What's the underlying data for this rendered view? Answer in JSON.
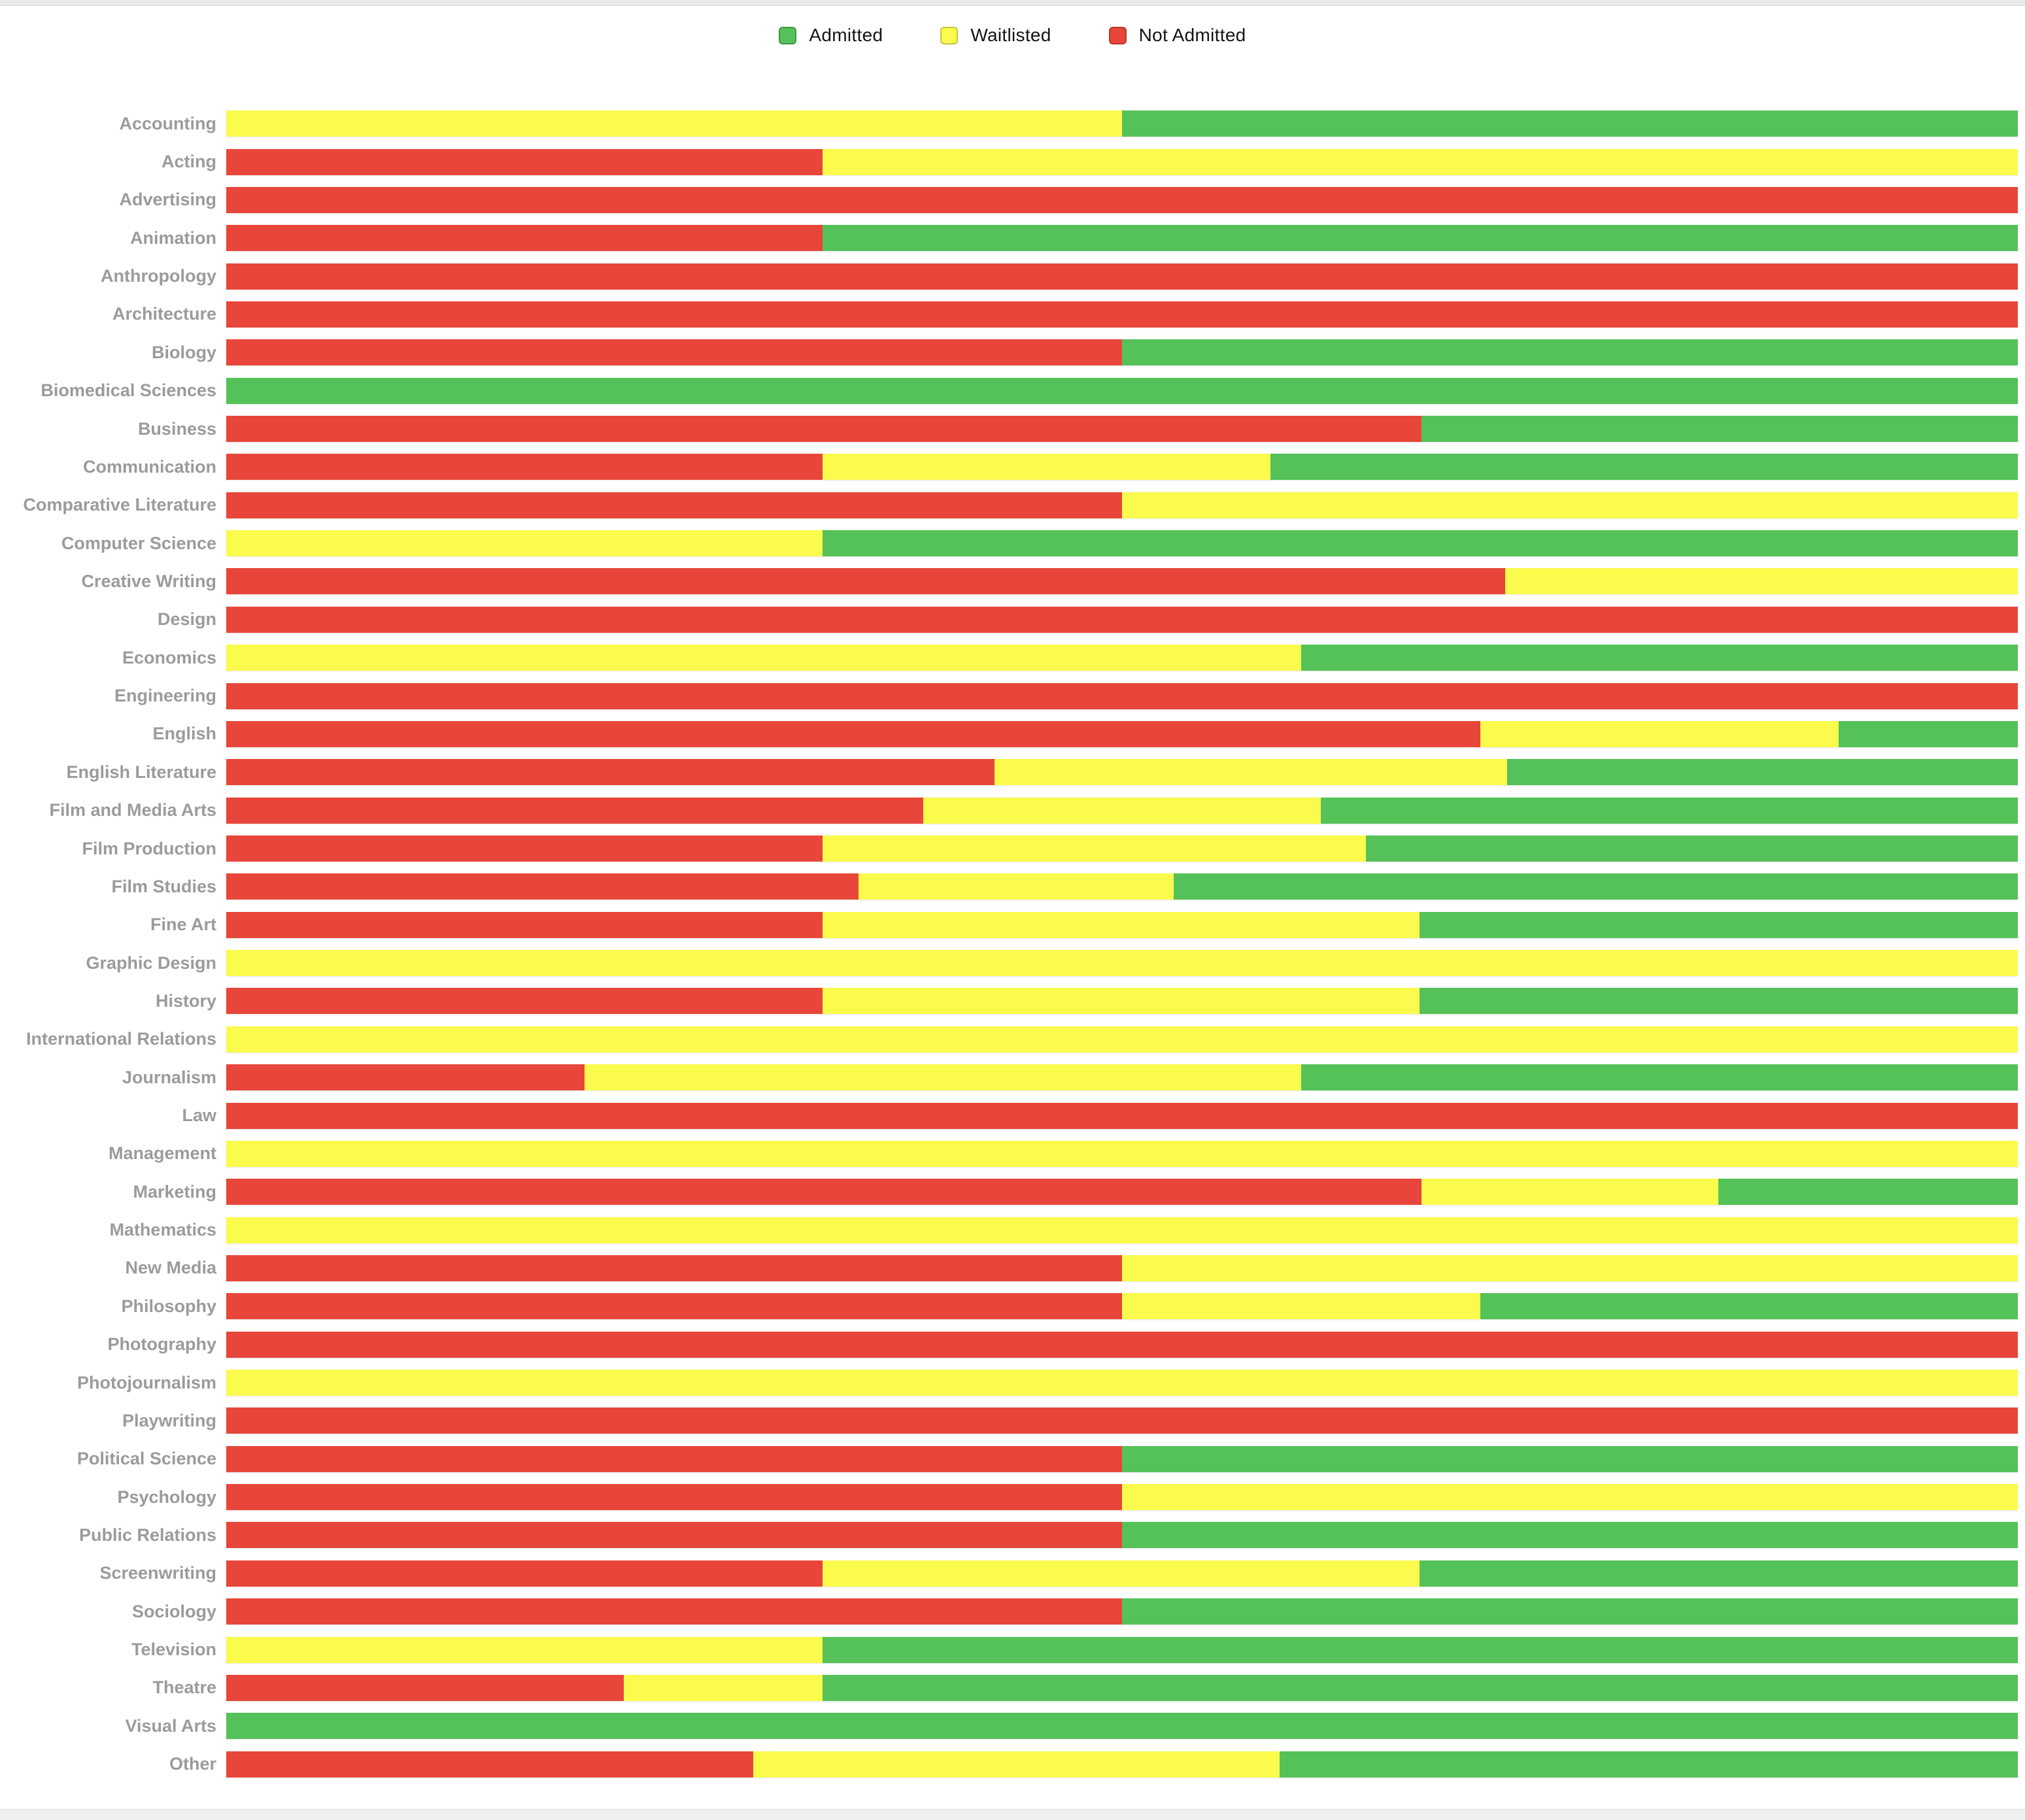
{
  "legend": {
    "items": [
      {
        "label": "Admitted",
        "color_key": "admitted"
      },
      {
        "label": "Waitlisted",
        "color_key": "waitlisted"
      },
      {
        "label": "Not Admitted",
        "color_key": "not_admitted"
      }
    ]
  },
  "colors": {
    "admitted": "#54C258",
    "waitlisted": "#FBFB4D",
    "not_admitted": "#E8463A"
  },
  "chart_data": {
    "type": "bar",
    "orientation": "horizontal",
    "stacked": true,
    "units": "percent",
    "xlim": [
      0,
      100
    ],
    "axes_hidden": true,
    "grid": false,
    "legend_position": "top-center",
    "segment_order_left_to_right": [
      "Not Admitted",
      "Waitlisted",
      "Admitted"
    ],
    "categories": [
      "Accounting",
      "Acting",
      "Advertising",
      "Animation",
      "Anthropology",
      "Architecture",
      "Biology",
      "Biomedical Sciences",
      "Business",
      "Communication",
      "Comparative Literature",
      "Computer Science",
      "Creative Writing",
      "Design",
      "Economics",
      "Engineering",
      "English",
      "English Literature",
      "Film and Media Arts",
      "Film Production",
      "Film Studies",
      "Fine Art",
      "Graphic Design",
      "History",
      "International Relations",
      "Journalism",
      "Law",
      "Management",
      "Marketing",
      "Mathematics",
      "New Media",
      "Philosophy",
      "Photography",
      "Photojournalism",
      "Playwriting",
      "Political Science",
      "Psychology",
      "Public Relations",
      "Screenwriting",
      "Sociology",
      "Television",
      "Theatre",
      "Visual Arts",
      "Other"
    ],
    "series": [
      {
        "name": "Not Admitted",
        "color_key": "not_admitted",
        "values": [
          0,
          33.3,
          100,
          33.3,
          100,
          100,
          50,
          0,
          66.7,
          33.3,
          50,
          0,
          71.4,
          100,
          0,
          100,
          70,
          42.9,
          38.9,
          33.3,
          35.3,
          33.3,
          0,
          33.3,
          0,
          20,
          100,
          0,
          66.7,
          0,
          50,
          50,
          100,
          0,
          100,
          50,
          50,
          50,
          33.3,
          50,
          0,
          22.2,
          0,
          29.4
        ]
      },
      {
        "name": "Waitlisted",
        "color_key": "waitlisted",
        "values": [
          50,
          66.7,
          0,
          0,
          0,
          0,
          0,
          0,
          0,
          25,
          50,
          33.3,
          28.6,
          0,
          60,
          0,
          20,
          28.6,
          22.2,
          30.3,
          17.6,
          33.3,
          100,
          33.3,
          100,
          40,
          0,
          100,
          16.6,
          100,
          50,
          20,
          0,
          100,
          0,
          0,
          50,
          0,
          33.3,
          0,
          33.3,
          11.1,
          0,
          29.4
        ]
      },
      {
        "name": "Admitted",
        "color_key": "admitted",
        "values": [
          50,
          0,
          0,
          66.7,
          0,
          0,
          50,
          100,
          33.3,
          41.7,
          0,
          66.7,
          0,
          0,
          40,
          0,
          10,
          28.5,
          38.9,
          36.4,
          47.1,
          33.4,
          0,
          33.4,
          0,
          40,
          0,
          0,
          16.7,
          0,
          0,
          30,
          0,
          0,
          0,
          50,
          0,
          50,
          33.4,
          50,
          66.7,
          66.7,
          100,
          41.2
        ]
      }
    ]
  }
}
